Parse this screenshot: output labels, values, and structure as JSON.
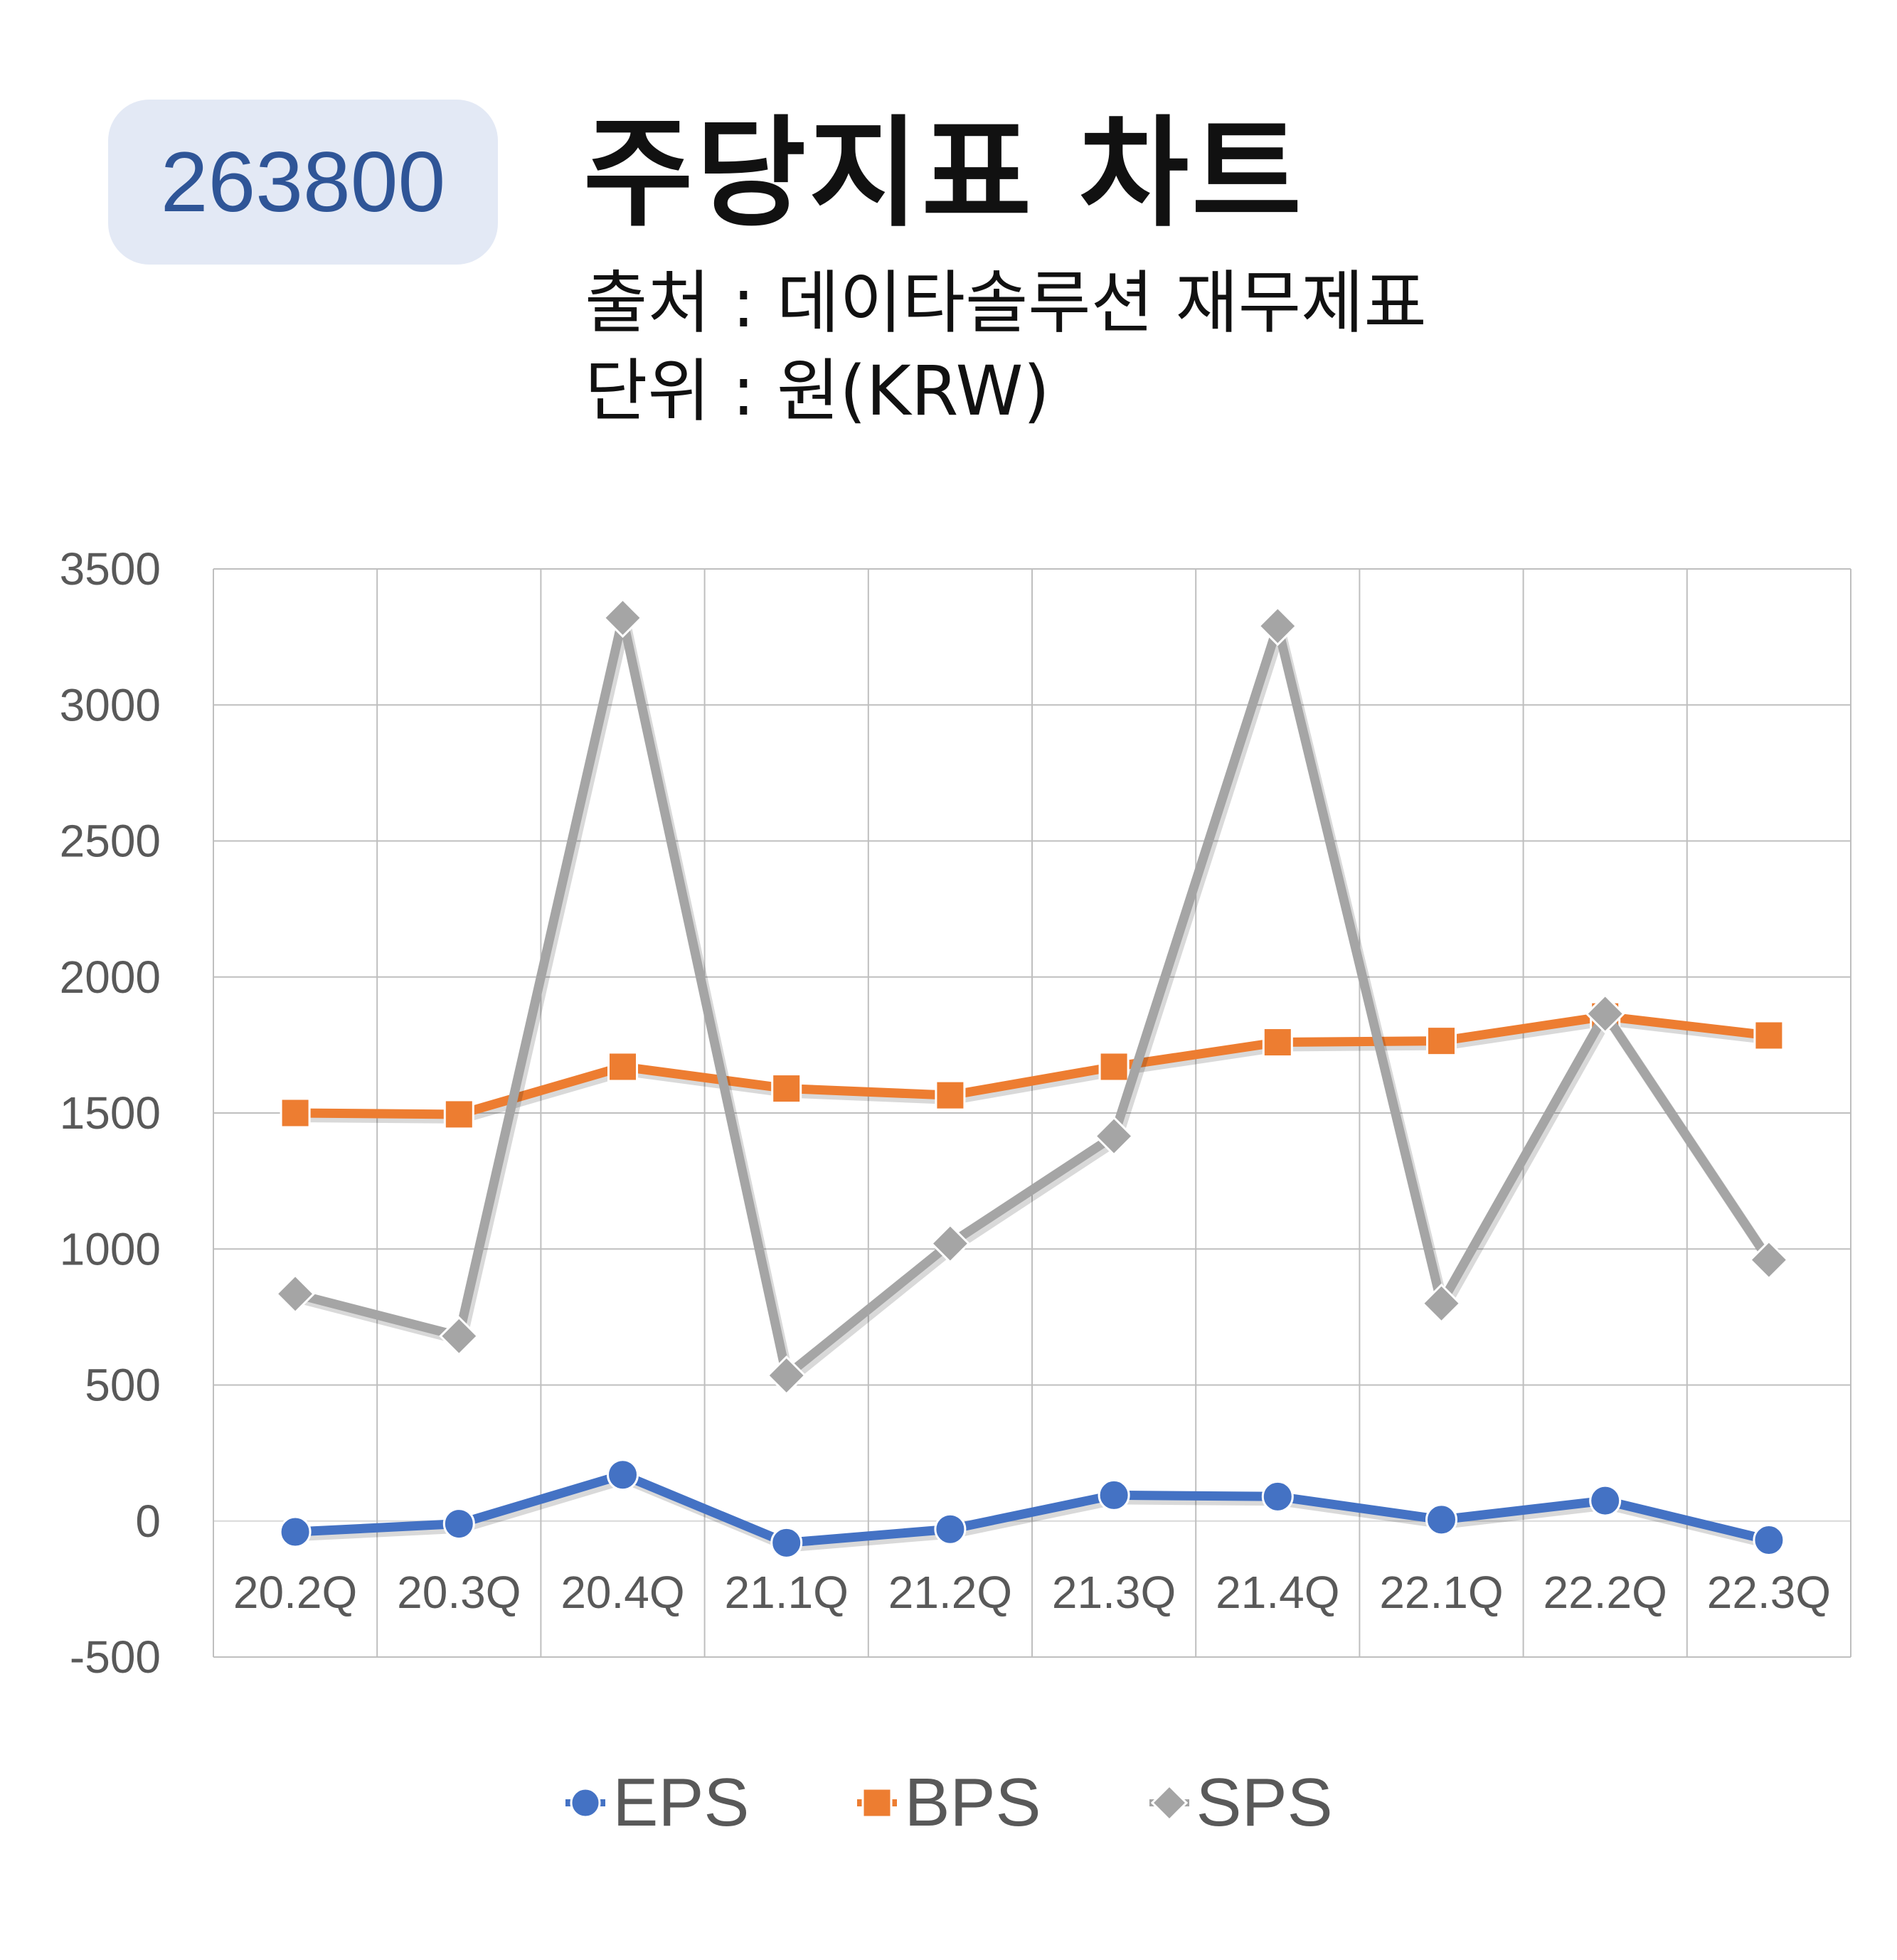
{
  "header": {
    "code": "263800",
    "title": "주당지표 차트",
    "source": "출처 : 데이타솔루션 재무제표",
    "unit": "단위 : 원(KRW)"
  },
  "colors": {
    "EPS": "#4472c4",
    "BPS": "#ed7d31",
    "SPS": "#a5a5a5",
    "grid": "#bfbfbf",
    "axis_text": "#595959"
  },
  "chart_data": {
    "type": "line",
    "categories": [
      "20.2Q",
      "20.3Q",
      "20.4Q",
      "21.1Q",
      "21.2Q",
      "21.3Q",
      "21.4Q",
      "22.1Q",
      "22.2Q",
      "22.3Q"
    ],
    "y_ticks": [
      "3500",
      "3000",
      "2500",
      "2000",
      "1500",
      "1000",
      "500",
      "0",
      "-500"
    ],
    "ylim": [
      -500,
      3500
    ],
    "grid": true,
    "legend": "bottom",
    "series": [
      {
        "name": "EPS",
        "marker": "circle",
        "values": [
          -40,
          -10,
          170,
          -80,
          -30,
          95,
          90,
          5,
          75,
          -70
        ]
      },
      {
        "name": "BPS",
        "marker": "square",
        "values": [
          1500,
          1495,
          1670,
          1590,
          1565,
          1670,
          1760,
          1765,
          1855,
          1785
        ]
      },
      {
        "name": "SPS",
        "marker": "diamond",
        "values": [
          835,
          680,
          3320,
          535,
          1020,
          1415,
          3290,
          800,
          1865,
          960
        ]
      }
    ]
  }
}
